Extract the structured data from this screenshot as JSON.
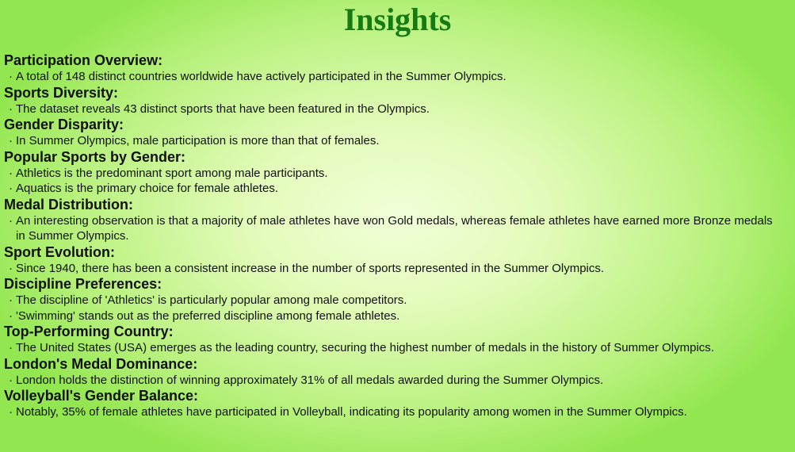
{
  "title": "Insights",
  "sections": [
    {
      "heading": "Participation Overview:",
      "bullets": [
        "A total of 148 distinct countries worldwide have actively participated in the Summer Olympics."
      ]
    },
    {
      "heading": "Sports Diversity:",
      "bullets": [
        "The dataset reveals 43 distinct sports that have been featured in the Olympics."
      ]
    },
    {
      "heading": "Gender Disparity:",
      "bullets": [
        "In Summer Olympics, male participation is more than that of females."
      ]
    },
    {
      "heading": "Popular Sports by Gender:",
      "bullets": [
        "Athletics is the predominant sport among male participants.",
        "Aquatics is the primary choice for female athletes."
      ]
    },
    {
      "heading": "Medal Distribution:",
      "bullets": [
        "An interesting observation is that a majority of male athletes have won Gold medals, whereas female athletes have earned more Bronze medals in Summer Olympics."
      ]
    },
    {
      "heading": "Sport Evolution:",
      "bullets": [
        "Since 1940, there has been a consistent increase in the number of sports represented in the Summer Olympics."
      ]
    },
    {
      "heading": "Discipline Preferences:",
      "bullets": [
        "The discipline of 'Athletics' is particularly popular among male competitors.",
        "'Swimming' stands out as the preferred discipline among female athletes."
      ]
    },
    {
      "heading": "Top-Performing Country:",
      "bullets": [
        "The United States (USA) emerges as the leading country, securing the highest number of medals in the history of Summer Olympics."
      ]
    },
    {
      "heading": "London's Medal Dominance:",
      "bullets": [
        "London holds the distinction of winning approximately 31% of all medals awarded during the Summer Olympics."
      ]
    },
    {
      "heading": "Volleyball's Gender Balance:",
      "bullets": [
        "Notably, 35% of female athletes have participated in Volleyball, indicating its popularity among women in the Summer Olympics."
      ]
    }
  ]
}
